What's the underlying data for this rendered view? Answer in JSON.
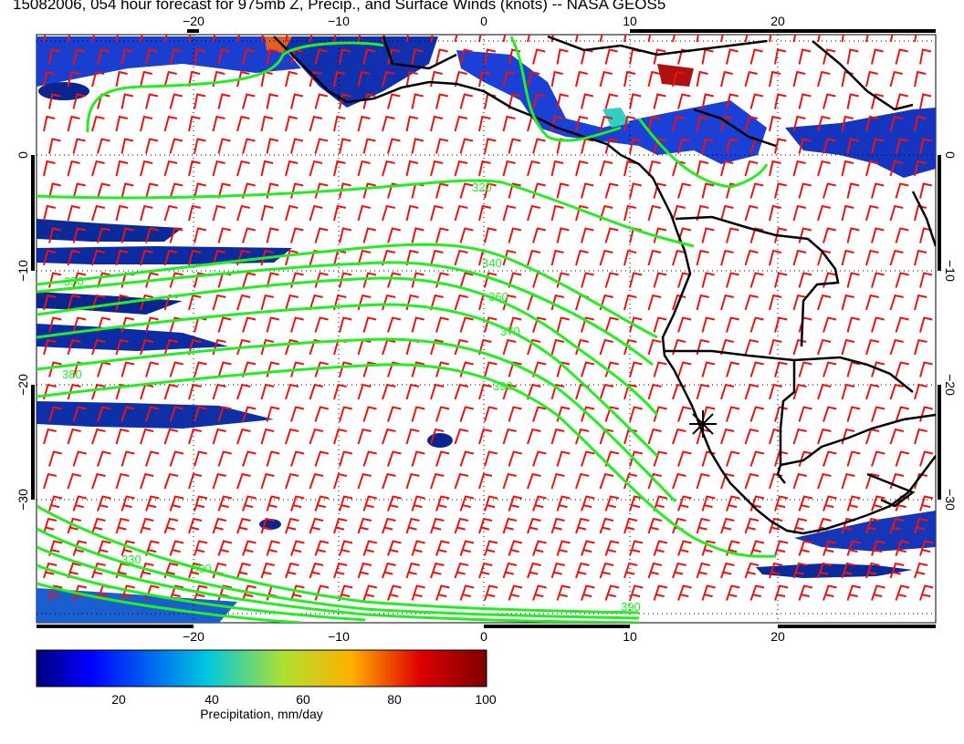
{
  "title": "15082006, 054 hour forecast for 975mb Z, Precip., and Surface Winds (knots) -- NASA GEOS5",
  "map": {
    "lon_range": [
      -31,
      31
    ],
    "lat_range": [
      -40,
      10
    ],
    "lon_ticks": [
      -20,
      -10,
      0,
      10,
      20
    ],
    "lat_ticks": [
      0,
      -10,
      -20,
      -30
    ],
    "lon_tick_labels": [
      "−20",
      "−10",
      "0",
      "10",
      "20"
    ],
    "lat_tick_labels": [
      "0",
      "−10",
      "−20",
      "−30"
    ],
    "gridlines": "dotted",
    "contour_color": "#22ee22",
    "wind_barb_color": "#ee1111",
    "coastline_color": "#000000",
    "contour_labels": [
      "320",
      "340",
      "350",
      "360",
      "370",
      "380",
      "390",
      "330",
      "390",
      "390"
    ],
    "marker": {
      "lon": 15,
      "lat": -23
    }
  },
  "colorbar": {
    "ticks": [
      "20",
      "40",
      "60",
      "80",
      "100"
    ],
    "label": "Precipitation, mm/day",
    "colors": [
      "#00007f",
      "#0000ff",
      "#00c0ff",
      "#3fe0c0",
      "#c0e03f",
      "#ffc000",
      "#ff4000",
      "#c00000",
      "#7f0000"
    ]
  }
}
